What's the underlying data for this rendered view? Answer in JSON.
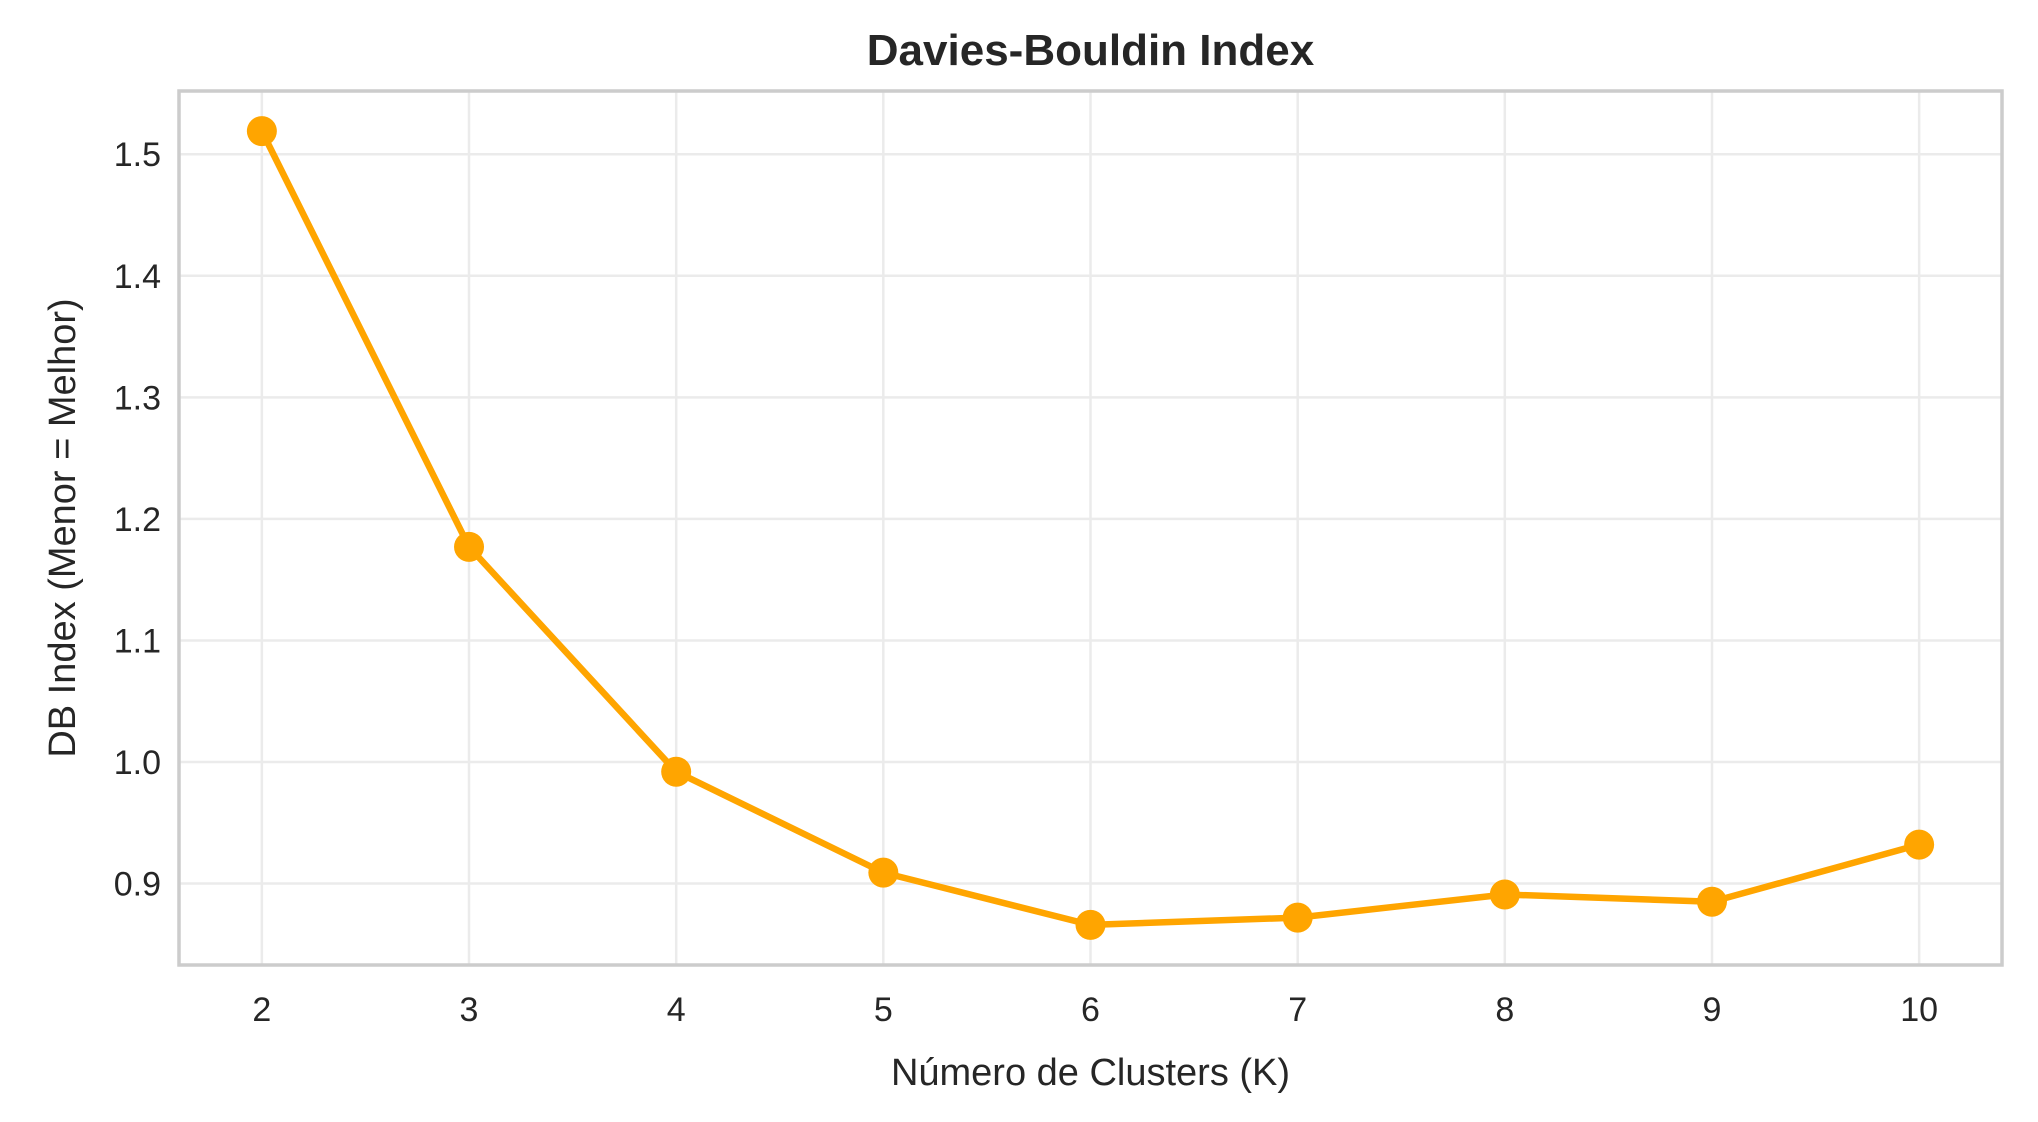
{
  "chart_data": {
    "type": "line",
    "title": "Davies-Bouldin Index",
    "xlabel": "Número de Clusters (K)",
    "ylabel": "DB Index (Menor = Melhor)",
    "x": [
      2,
      3,
      4,
      5,
      6,
      7,
      8,
      9,
      10
    ],
    "series": [
      {
        "values": [
          1.519,
          1.177,
          0.992,
          0.909,
          0.866,
          0.872,
          0.891,
          0.885,
          0.932
        ],
        "color": "#ffa500",
        "marker": "circle"
      }
    ],
    "xlim": [
      1.6,
      10.4
    ],
    "ylim": [
      0.833,
      1.552
    ],
    "xticks": [
      2,
      3,
      4,
      5,
      6,
      7,
      8,
      9,
      10
    ],
    "yticks": [
      0.9,
      1.0,
      1.1,
      1.2,
      1.3,
      1.4,
      1.5
    ],
    "ytick_labels": [
      "0.9",
      "1.0",
      "1.1",
      "1.2",
      "1.3",
      "1.4",
      "1.5"
    ],
    "grid": true,
    "legend": "none"
  }
}
